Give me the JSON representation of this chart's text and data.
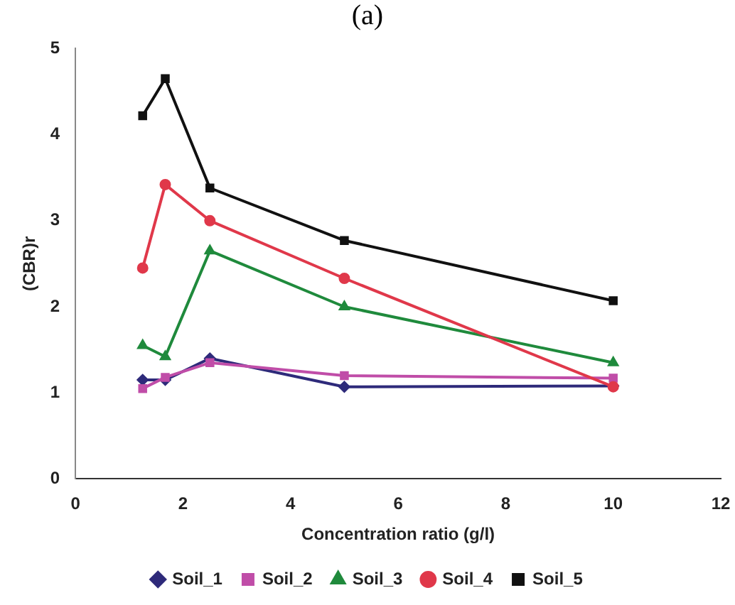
{
  "chart_data": {
    "type": "line",
    "title": "(a)",
    "xlabel": "Concentration ratio (g/l)",
    "ylabel": "(CBR)r",
    "xlim": [
      0,
      12
    ],
    "xticks": [
      0,
      2,
      4,
      6,
      8,
      10,
      12
    ],
    "ylim": [
      0,
      5
    ],
    "yticks": [
      0,
      1,
      2,
      3,
      4,
      5
    ],
    "grid": false,
    "legend": "bottom",
    "line_style": "solid",
    "x": [
      1.25,
      1.67,
      2.5,
      5,
      10
    ],
    "series": [
      {
        "name": "Soil_1",
        "color": "#2e2a7a",
        "marker": "diamond",
        "values": [
          1.15,
          1.15,
          1.4,
          1.07,
          1.08
        ]
      },
      {
        "name": "Soil_2",
        "color": "#c04da8",
        "marker": "square",
        "values": [
          1.05,
          1.18,
          1.35,
          1.2,
          1.17
        ]
      },
      {
        "name": "Soil_3",
        "color": "#1f8a3c",
        "marker": "triangle",
        "values": [
          1.55,
          1.42,
          2.65,
          2.0,
          1.35
        ]
      },
      {
        "name": "Soil_4",
        "color": "#e0384a",
        "marker": "circle",
        "values": [
          2.45,
          3.42,
          3.0,
          2.33,
          1.07
        ]
      },
      {
        "name": "Soil_5",
        "color": "#111111",
        "marker": "square",
        "values": [
          4.22,
          4.65,
          3.38,
          2.77,
          2.07
        ]
      }
    ]
  }
}
